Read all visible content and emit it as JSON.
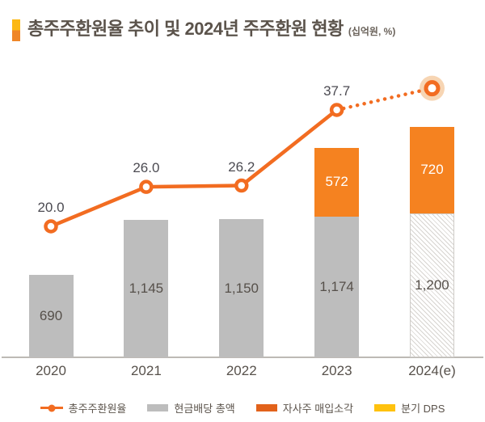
{
  "title": {
    "text": "총주주환원율 추이 및 2024년 주주환원 현황",
    "unit": "(십억원, %)"
  },
  "colors": {
    "line_orange": "#F26C21",
    "bar_orange": "#F58220",
    "bar_gray": "#BDBDBD",
    "legend_orange": "#E2621B",
    "legend_yellow": "#FFC20E",
    "halo_peach": "#F7D5B3",
    "bullet_yellow": "#FCB813",
    "bullet_orange": "#EF8628",
    "text_dark": "#57514B"
  },
  "chart_data": {
    "type": "bar",
    "subtype": "stacked-bar-with-line-combo",
    "unit": "십억원, %",
    "categories": [
      "2020",
      "2021",
      "2022",
      "2023",
      "2024(e)"
    ],
    "series": [
      {
        "name": "현금배당 총액",
        "type": "bar",
        "style": "gray",
        "values": [
          690,
          1145,
          1150,
          1174,
          1200
        ],
        "labels": [
          "690",
          "1,145",
          "1,150",
          "1,174",
          "1,200"
        ],
        "hatched_estimate_index": 4
      },
      {
        "name": "자사주 매입소각",
        "type": "bar",
        "style": "orange",
        "values": [
          0,
          0,
          0,
          572,
          720
        ],
        "labels": [
          "",
          "",
          "",
          "572",
          "720"
        ]
      },
      {
        "name": "총주주환원율",
        "type": "line",
        "values": [
          20.0,
          26.0,
          26.2,
          37.7,
          41.0
        ],
        "labels": [
          "20.0",
          "26.0",
          "26.2",
          "37.7",
          ""
        ],
        "dotted_from_index": 3,
        "halo_on_last_point": true
      }
    ],
    "legend": [
      {
        "label": "총주주환원율",
        "symbol": "line-marker",
        "color": "#F26C21"
      },
      {
        "label": "현금배당 총액",
        "symbol": "swatch",
        "color": "#BDBDBD"
      },
      {
        "label": "자사주 매입소각",
        "symbol": "swatch",
        "color": "#E2621B"
      },
      {
        "label": "분기 DPS",
        "symbol": "swatch",
        "color": "#FFC20E"
      }
    ],
    "axis": {
      "baseline_visible": true,
      "gridlines": false,
      "y_axis_labels": false
    }
  }
}
